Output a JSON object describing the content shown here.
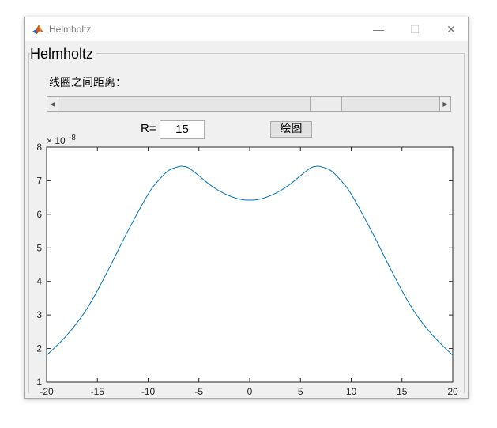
{
  "window": {
    "title": "Helmholtz",
    "minimize_glyph": "—",
    "maximize_glyph": "☐",
    "close_glyph": "✕"
  },
  "panel": {
    "title": "Helmholtz",
    "distance_label": "线圈之间距离：",
    "slider": {
      "value_fraction": 0.72,
      "left_arrow": "◀",
      "right_arrow": "▶"
    },
    "r_label": "R=",
    "r_value": "15",
    "plot_button": "绘图"
  },
  "chart_data": {
    "type": "line",
    "exponent_label": "× 10",
    "exponent_power": "-8",
    "xlim": [
      -20,
      20
    ],
    "ylim": [
      1,
      8
    ],
    "xticks": [
      "-20",
      "-15",
      "-10",
      "-5",
      "0",
      "5",
      "10",
      "15",
      "20"
    ],
    "yticks": [
      "1",
      "2",
      "3",
      "4",
      "5",
      "6",
      "7",
      "8"
    ],
    "line_color": "#0072bd",
    "series": [
      {
        "x": [
          -20,
          -18,
          -16,
          -14,
          -12,
          -10,
          -9,
          -8,
          -7,
          -6.6,
          -6,
          -5,
          -4,
          -3,
          -2,
          -1,
          0,
          1,
          2,
          3,
          4,
          5,
          6,
          6.6,
          7,
          8,
          9,
          10,
          12,
          14,
          16,
          18,
          20
        ],
        "values": [
          1.8,
          2.4,
          3.2,
          4.3,
          5.5,
          6.6,
          7.0,
          7.3,
          7.42,
          7.43,
          7.38,
          7.15,
          6.9,
          6.7,
          6.55,
          6.45,
          6.42,
          6.45,
          6.55,
          6.7,
          6.9,
          7.15,
          7.38,
          7.43,
          7.42,
          7.3,
          7.0,
          6.6,
          5.5,
          4.3,
          3.2,
          2.4,
          1.8
        ]
      }
    ]
  }
}
